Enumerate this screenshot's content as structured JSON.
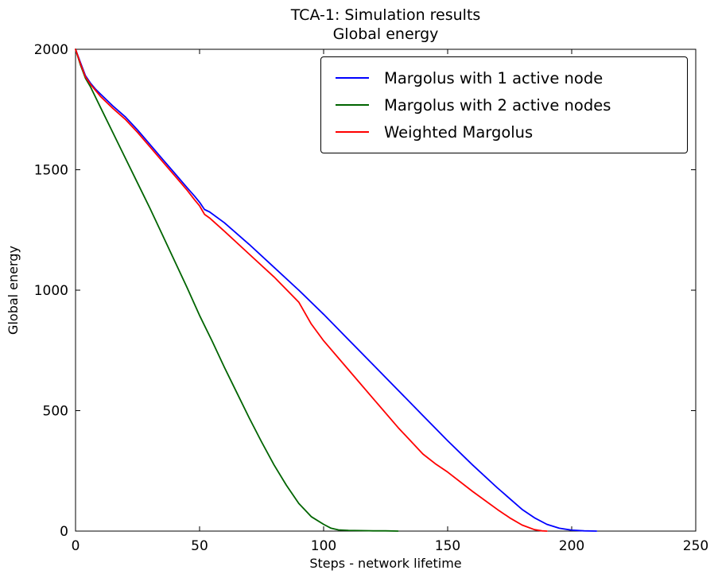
{
  "chart_data": {
    "type": "line",
    "title": "TCA-1: Simulation results",
    "subtitle": "Global energy",
    "xlabel": "Steps - network lifetime",
    "ylabel": "Global energy",
    "xlim": [
      0,
      250
    ],
    "ylim": [
      0,
      2000
    ],
    "x_ticks": [
      0,
      50,
      100,
      150,
      200,
      250
    ],
    "y_ticks": [
      0,
      500,
      1000,
      1500,
      2000
    ],
    "grid": false,
    "legend_position": "upper right",
    "background_color": "#ffffff",
    "frame_color": "#000000",
    "series": [
      {
        "name": "Margolus with 1 active node",
        "color": "#0000ff",
        "points": [
          [
            0,
            2000
          ],
          [
            2,
            1945
          ],
          [
            4,
            1890
          ],
          [
            6,
            1860
          ],
          [
            8,
            1835
          ],
          [
            10,
            1815
          ],
          [
            15,
            1765
          ],
          [
            20,
            1720
          ],
          [
            25,
            1665
          ],
          [
            30,
            1605
          ],
          [
            35,
            1545
          ],
          [
            40,
            1485
          ],
          [
            45,
            1425
          ],
          [
            48,
            1390
          ],
          [
            50,
            1365
          ],
          [
            52,
            1335
          ],
          [
            54,
            1325
          ],
          [
            60,
            1280
          ],
          [
            70,
            1190
          ],
          [
            80,
            1095
          ],
          [
            90,
            1000
          ],
          [
            100,
            900
          ],
          [
            110,
            795
          ],
          [
            120,
            690
          ],
          [
            130,
            585
          ],
          [
            140,
            480
          ],
          [
            150,
            375
          ],
          [
            160,
            275
          ],
          [
            170,
            180
          ],
          [
            180,
            90
          ],
          [
            185,
            55
          ],
          [
            190,
            28
          ],
          [
            195,
            12
          ],
          [
            200,
            4
          ],
          [
            205,
            1
          ],
          [
            210,
            0
          ]
        ]
      },
      {
        "name": "Margolus with 2 active nodes",
        "color": "#006400",
        "points": [
          [
            0,
            2000
          ],
          [
            2,
            1935
          ],
          [
            4,
            1880
          ],
          [
            6,
            1845
          ],
          [
            10,
            1760
          ],
          [
            15,
            1655
          ],
          [
            20,
            1550
          ],
          [
            25,
            1445
          ],
          [
            30,
            1340
          ],
          [
            35,
            1230
          ],
          [
            40,
            1120
          ],
          [
            45,
            1010
          ],
          [
            50,
            895
          ],
          [
            55,
            790
          ],
          [
            60,
            680
          ],
          [
            65,
            575
          ],
          [
            70,
            470
          ],
          [
            75,
            370
          ],
          [
            80,
            275
          ],
          [
            85,
            190
          ],
          [
            90,
            115
          ],
          [
            95,
            60
          ],
          [
            100,
            28
          ],
          [
            103,
            12
          ],
          [
            106,
            5
          ],
          [
            110,
            3
          ],
          [
            115,
            2
          ],
          [
            120,
            1
          ],
          [
            125,
            1
          ],
          [
            130,
            0
          ]
        ]
      },
      {
        "name": "Weighted Margolus",
        "color": "#ff0000",
        "points": [
          [
            0,
            2000
          ],
          [
            2,
            1940
          ],
          [
            4,
            1885
          ],
          [
            6,
            1855
          ],
          [
            8,
            1830
          ],
          [
            10,
            1805
          ],
          [
            15,
            1755
          ],
          [
            20,
            1710
          ],
          [
            25,
            1655
          ],
          [
            30,
            1595
          ],
          [
            35,
            1535
          ],
          [
            40,
            1475
          ],
          [
            45,
            1415
          ],
          [
            48,
            1375
          ],
          [
            50,
            1350
          ],
          [
            52,
            1315
          ],
          [
            54,
            1300
          ],
          [
            60,
            1245
          ],
          [
            70,
            1150
          ],
          [
            80,
            1055
          ],
          [
            90,
            950
          ],
          [
            95,
            860
          ],
          [
            100,
            790
          ],
          [
            110,
            670
          ],
          [
            120,
            550
          ],
          [
            130,
            430
          ],
          [
            140,
            320
          ],
          [
            145,
            280
          ],
          [
            150,
            245
          ],
          [
            160,
            165
          ],
          [
            170,
            90
          ],
          [
            175,
            55
          ],
          [
            180,
            25
          ],
          [
            185,
            6
          ],
          [
            188,
            1
          ],
          [
            190,
            0
          ]
        ]
      }
    ]
  }
}
